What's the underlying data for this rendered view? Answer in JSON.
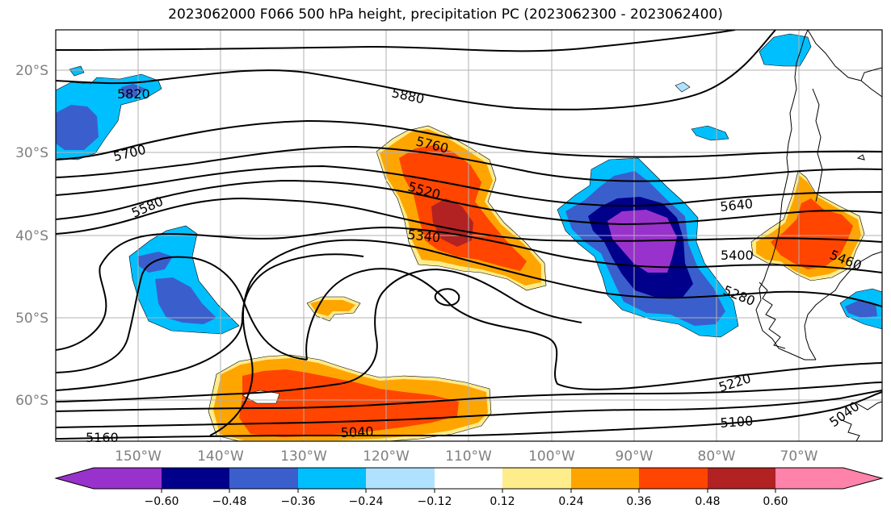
{
  "title": "2023062000 F066 500 hPa height, precipitation PC (2023062300 - 2023062400)",
  "lat_labels": [
    "20°S",
    "30°S",
    "40°S",
    "50°S",
    "60°S"
  ],
  "lon_labels": [
    "150°W",
    "140°W",
    "130°W",
    "120°W",
    "110°W",
    "100°W",
    "90°W",
    "80°W",
    "70°W"
  ],
  "contour_labels": [
    "5820",
    "5880",
    "5700",
    "5760",
    "5580",
    "5520",
    "5340",
    "5640",
    "5400",
    "5460",
    "5280",
    "5220",
    "5100",
    "5040",
    "5040",
    "5160"
  ],
  "colorbar": {
    "ticks": [
      "−0.60",
      "−0.48",
      "−0.36",
      "−0.24",
      "−0.12",
      "0.12",
      "0.24",
      "0.36",
      "0.48",
      "0.60"
    ],
    "colors": [
      "#9932cc",
      "#00008b",
      "#3a5fcd",
      "#00bfff",
      "#b0e2ff",
      "#ffffff",
      "#ffec8b",
      "#ffa500",
      "#ff4500",
      "#b22222",
      "#ff82ab"
    ]
  },
  "colors": {
    "neg_strong": "#9932cc",
    "neg_dark": "#00008b",
    "neg_mid": "#3a5fcd",
    "neg_light": "#00bfff",
    "neg_pale": "#b0e2ff",
    "pos_pale": "#ffec8b",
    "pos_light": "#ffa500",
    "pos_mid": "#ff4500",
    "pos_dark": "#b22222",
    "pos_strong": "#ff82ab"
  }
}
